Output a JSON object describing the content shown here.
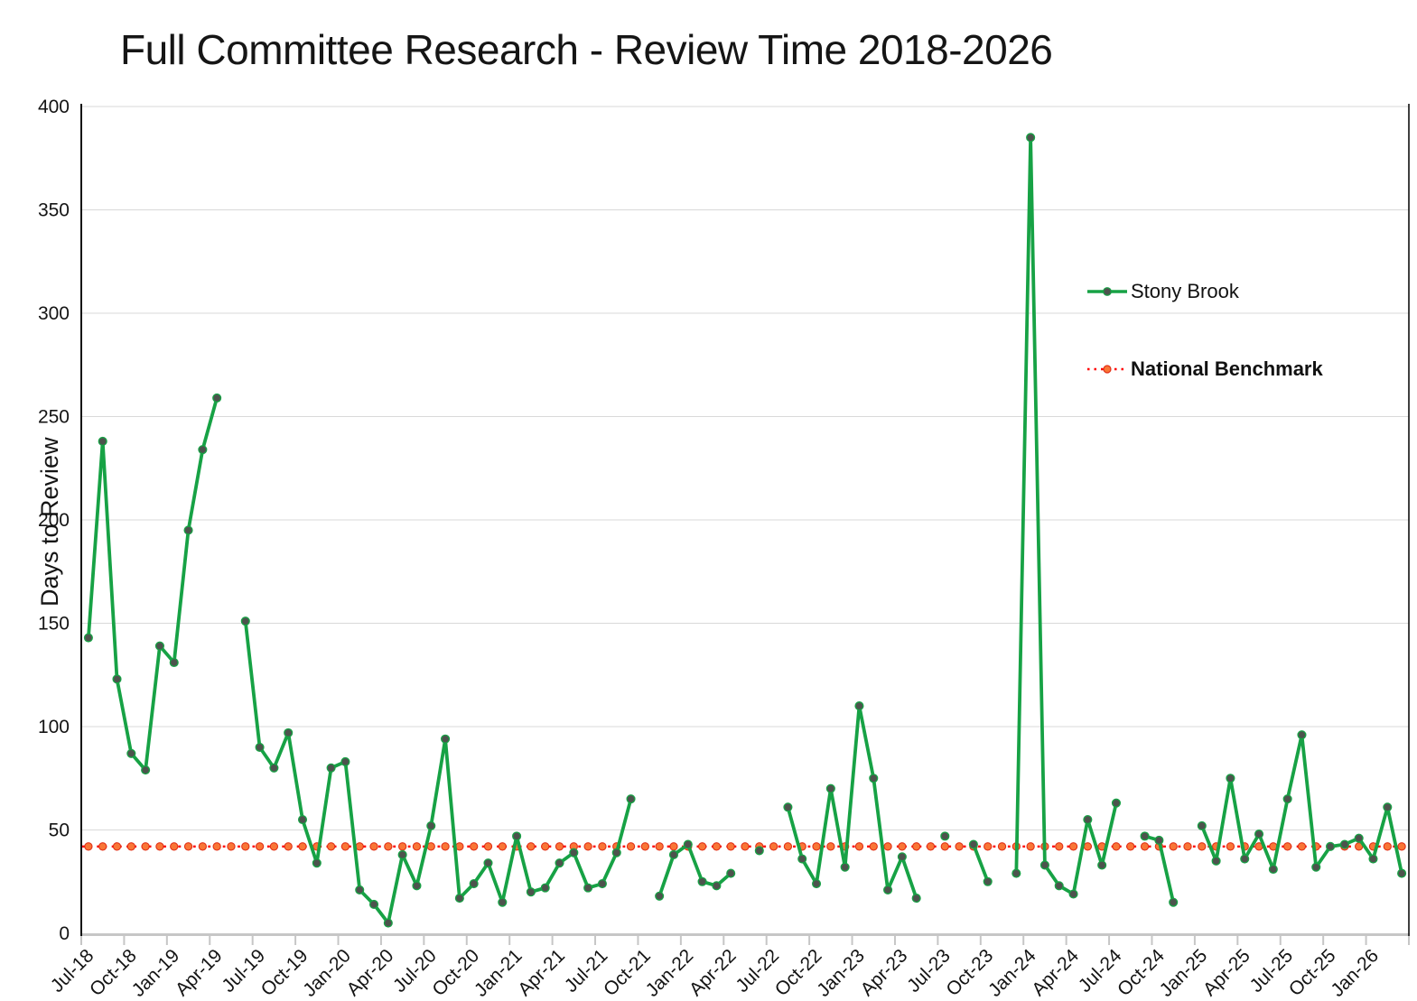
{
  "chart_data": {
    "type": "line",
    "title": "Full Committee Research - Review Time 2018-2026",
    "ylabel": "Days to Review",
    "xlabel": "",
    "ylim": [
      0,
      400
    ],
    "grid": true,
    "legend_position": "right-middle",
    "y_tick_labels": [
      "0",
      "50",
      "100",
      "150",
      "200",
      "250",
      "300",
      "350",
      "400"
    ],
    "x_tick_labels": [
      "Jul-18",
      "Oct-18",
      "Jan-19",
      "Apr-19",
      "Jul-19",
      "Oct-19",
      "Jan-20",
      "Apr-20",
      "Jul-20",
      "Oct-20",
      "Jan-21",
      "Apr-21",
      "Jul-21",
      "Oct-21",
      "Jan-22",
      "Apr-22",
      "Jul-22",
      "Oct-22",
      "Jan-23",
      "Apr-23",
      "Jul-23",
      "Oct-23",
      "Jan-24",
      "Apr-24",
      "Jul-24",
      "Oct-24",
      "Jan-25",
      "Apr-25",
      "Jul-25",
      "Oct-25",
      "Jan-26"
    ],
    "months": [
      "Jul-18",
      "Aug-18",
      "Sep-18",
      "Oct-18",
      "Nov-18",
      "Dec-18",
      "Jan-19",
      "Feb-19",
      "Mar-19",
      "Apr-19",
      "May-19",
      "Jun-19",
      "Jul-19",
      "Aug-19",
      "Sep-19",
      "Oct-19",
      "Nov-19",
      "Dec-19",
      "Jan-20",
      "Feb-20",
      "Mar-20",
      "Apr-20",
      "May-20",
      "Jun-20",
      "Jul-20",
      "Aug-20",
      "Sep-20",
      "Oct-20",
      "Nov-20",
      "Dec-20",
      "Jan-21",
      "Feb-21",
      "Mar-21",
      "Apr-21",
      "May-21",
      "Jun-21",
      "Jul-21",
      "Aug-21",
      "Sep-21",
      "Oct-21",
      "Nov-21",
      "Dec-21",
      "Jan-22",
      "Feb-22",
      "Mar-22",
      "Apr-22",
      "May-22",
      "Jun-22",
      "Jul-22",
      "Aug-22",
      "Sep-22",
      "Oct-22",
      "Nov-22",
      "Dec-22",
      "Jan-23",
      "Feb-23",
      "Mar-23",
      "Apr-23",
      "May-23",
      "Jun-23",
      "Jul-23",
      "Aug-23",
      "Sep-23",
      "Oct-23",
      "Nov-23",
      "Dec-23",
      "Jan-24",
      "Feb-24",
      "Mar-24",
      "Apr-24",
      "May-24",
      "Jun-24",
      "Jul-24",
      "Aug-24",
      "Sep-24",
      "Oct-24",
      "Nov-24",
      "Dec-24",
      "Jan-25",
      "Feb-25",
      "Mar-25",
      "Apr-25",
      "May-25",
      "Jun-25",
      "Jul-25",
      "Aug-25",
      "Sep-25",
      "Oct-25",
      "Nov-25",
      "Dec-25",
      "Jan-26",
      "Feb-26",
      "Mar-26"
    ],
    "series": [
      {
        "name": "Stony Brook",
        "color": "#17a245",
        "marker_fill": "#4d534d",
        "marker_edge": "#17a245",
        "values": [
          143,
          238,
          123,
          87,
          79,
          139,
          131,
          195,
          234,
          259,
          null,
          151,
          90,
          80,
          97,
          55,
          34,
          80,
          83,
          21,
          14,
          5,
          38,
          23,
          52,
          94,
          17,
          24,
          34,
          15,
          47,
          20,
          22,
          34,
          39,
          22,
          24,
          39,
          65,
          null,
          18,
          38,
          43,
          25,
          23,
          29,
          null,
          40,
          null,
          61,
          36,
          24,
          70,
          32,
          110,
          75,
          21,
          37,
          17,
          null,
          47,
          null,
          43,
          25,
          null,
          29,
          385,
          33,
          23,
          19,
          55,
          33,
          63,
          null,
          47,
          45,
          15,
          null,
          52,
          35,
          75,
          36,
          48,
          31,
          65,
          96,
          32,
          42,
          43,
          46,
          36,
          61,
          29
        ]
      },
      {
        "name": "National Benchmark",
        "color": "#ff0000",
        "marker_fill": "#f97636",
        "marker_edge": "#e23017",
        "line_style": "dotted",
        "constant_value": 42
      }
    ],
    "colors": {
      "gridline": "#d9d9d9",
      "axis_dark": "#0f0f0f",
      "axis_gray": "#c6c6c6",
      "tick_text": "#141414"
    }
  }
}
